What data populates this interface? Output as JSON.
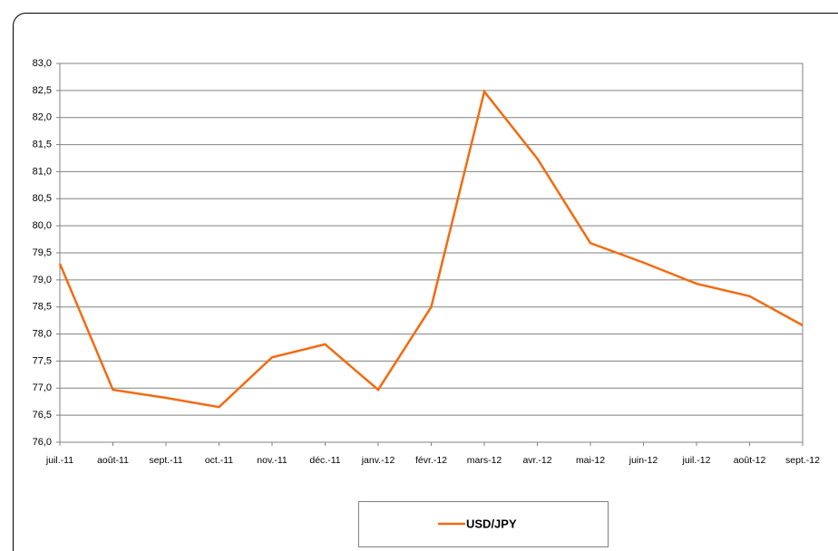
{
  "chart_data": {
    "type": "line",
    "categories": [
      "juil.-11",
      "août-11",
      "sept.-11",
      "oct.-11",
      "nov.-11",
      "déc.-11",
      "janv.-12",
      "févr.-12",
      "mars-12",
      "avr.-12",
      "mai-12",
      "juin-12",
      "juil.-12",
      "août-12",
      "sept.-12"
    ],
    "series": [
      {
        "name": "USD/JPY",
        "color": "#f26b0f",
        "values": [
          79.3,
          76.97,
          76.82,
          76.65,
          77.57,
          77.81,
          76.97,
          78.5,
          82.48,
          81.24,
          79.68,
          79.32,
          78.93,
          78.7,
          78.16
        ]
      }
    ],
    "ylim": [
      76,
      83
    ],
    "yticks": [
      {
        "value": 76,
        "label": "76,0"
      },
      {
        "value": 76.5,
        "label": "76,5"
      },
      {
        "value": 77,
        "label": "77,0"
      },
      {
        "value": 77.5,
        "label": "77,5"
      },
      {
        "value": 78,
        "label": "78,0"
      },
      {
        "value": 78.5,
        "label": "78,5"
      },
      {
        "value": 79,
        "label": "79,0"
      },
      {
        "value": 79.5,
        "label": "79,5"
      },
      {
        "value": 80,
        "label": "80,0"
      },
      {
        "value": 80.5,
        "label": "80,5"
      },
      {
        "value": 81,
        "label": "81,0"
      },
      {
        "value": 81.5,
        "label": "81,5"
      },
      {
        "value": 82,
        "label": "82,0"
      },
      {
        "value": 82.5,
        "label": "82,5"
      },
      {
        "value": 83,
        "label": "83,0"
      }
    ],
    "grid": true,
    "legend": "bottom"
  }
}
